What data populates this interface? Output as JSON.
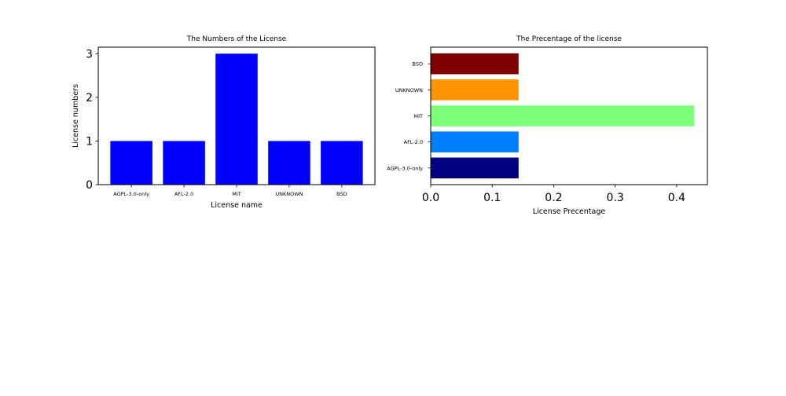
{
  "chart_data": [
    {
      "type": "bar",
      "title": "The Numbers of the License",
      "xlabel": "License name",
      "ylabel": "License numbers",
      "categories": [
        "AGPL-3.0-only",
        "AFL-2.0",
        "MIT",
        "UNKNOWN",
        "BSD"
      ],
      "values": [
        1,
        1,
        3,
        1,
        1
      ],
      "ylim": [
        0,
        3.15
      ],
      "yticks": [
        "0",
        "1",
        "2",
        "3"
      ],
      "color": "#0000ff",
      "grid": false
    },
    {
      "type": "barh",
      "title": "The Precentage of the license",
      "xlabel": "License Precentage",
      "ylabel": "",
      "categories": [
        "AGPL-3.0-only",
        "AFL-2.0",
        "MIT",
        "UNKNOWN",
        "BSD"
      ],
      "values": [
        0.1429,
        0.1429,
        0.4286,
        0.1429,
        0.1429
      ],
      "colors": [
        "#000080",
        "#0080ff",
        "#7dff7a",
        "#ff9400",
        "#800000"
      ],
      "xlim": [
        0,
        0.45
      ],
      "xticks": [
        "0.0",
        "0.1",
        "0.2",
        "0.3",
        "0.4"
      ],
      "grid": false
    }
  ]
}
